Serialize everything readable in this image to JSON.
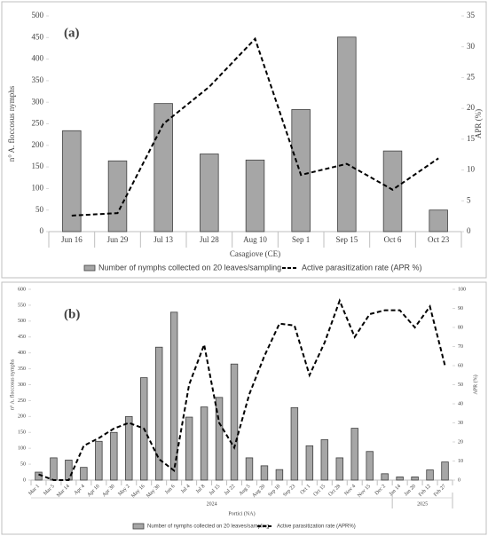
{
  "chart_data": [
    {
      "type": "bar",
      "annotation": "(a)",
      "xlabel": "Casagiove (CE)",
      "ylabel": "n° A. floccosus nymphs",
      "y2label": "APR (%)",
      "categories": [
        "Jun 16",
        "Jun 29",
        "Jul 13",
        "Jul 28",
        "Aug 10",
        "Sep 1",
        "Sep 15",
        "Oct 6",
        "Oct 23"
      ],
      "series": [
        {
          "name": "Number of nymphs collected on 20 leaves/sampling",
          "type": "bar",
          "axis": "y",
          "color": "#a6a6a6",
          "values": [
            234,
            164,
            297,
            180,
            166,
            283,
            451,
            187,
            50
          ]
        },
        {
          "name": "Active parasitization rate  (APR %)",
          "type": "line",
          "axis": "y2",
          "color": "#000000",
          "values": [
            2.6,
            3.0,
            17.5,
            23.5,
            31.3,
            9.2,
            11.0,
            6.8,
            11.9
          ]
        }
      ],
      "ylim": [
        0,
        500
      ],
      "yticks": [
        0,
        50,
        100,
        150,
        200,
        250,
        300,
        350,
        400,
        450,
        500
      ],
      "y2lim": [
        0,
        35
      ],
      "y2ticks": [
        0,
        5,
        10,
        15,
        20,
        25,
        30,
        35
      ],
      "grid": false,
      "legend": "bottom"
    },
    {
      "type": "bar",
      "annotation": "(b)",
      "xlabel": "Portici (NA)",
      "ylabel": "n° A. floccosus nymphs",
      "y2label": "APR (%)",
      "categories": [
        "Mar 1",
        "Mar 5",
        "Mar 14",
        "Apr 4",
        "Apr 10",
        "Apr 30",
        "May 2",
        "May 16",
        "May 30",
        "Jun 6",
        "Jul 4",
        "Jul 8",
        "Jul 15",
        "Jul 22",
        "Aug 5",
        "Aug 20",
        "Sep 10",
        "Sep 23",
        "Oct 1",
        "Oct 15",
        "Oct 28",
        "Nov 4",
        "Nov 15",
        "Dec 2",
        "Jan 14",
        "Jan 20",
        "Feb 12",
        "Feb 27"
      ],
      "groups": [
        {
          "label": "2024",
          "count": 24
        },
        {
          "label": "2025",
          "count": 4
        }
      ],
      "series": [
        {
          "name": "Number of nymphs collected on 20 leaves/sampling",
          "type": "bar",
          "axis": "y",
          "color": "#a6a6a6",
          "values": [
            25,
            70,
            63,
            40,
            122,
            150,
            200,
            322,
            418,
            528,
            198,
            230,
            260,
            365,
            70,
            45,
            33,
            228,
            108,
            127,
            70,
            163,
            90,
            20,
            10,
            10,
            32,
            57
          ]
        },
        {
          "name": "Active parasitization rate (APR%)",
          "type": "line",
          "axis": "y2",
          "color": "#000000",
          "values": [
            3,
            0,
            0,
            18,
            22,
            27,
            30,
            27,
            11,
            5,
            50,
            71,
            30,
            17,
            45,
            65,
            82,
            81,
            55,
            72,
            94,
            75,
            87,
            89,
            89,
            80,
            91,
            60
          ]
        }
      ],
      "ylim": [
        0,
        600
      ],
      "yticks": [
        0,
        50,
        100,
        150,
        200,
        250,
        300,
        350,
        400,
        450,
        500,
        550,
        600
      ],
      "y2lim": [
        0,
        100
      ],
      "y2ticks": [
        0,
        10,
        20,
        30,
        40,
        50,
        60,
        70,
        80,
        90,
        100
      ],
      "grid": false,
      "legend": "bottom"
    }
  ]
}
